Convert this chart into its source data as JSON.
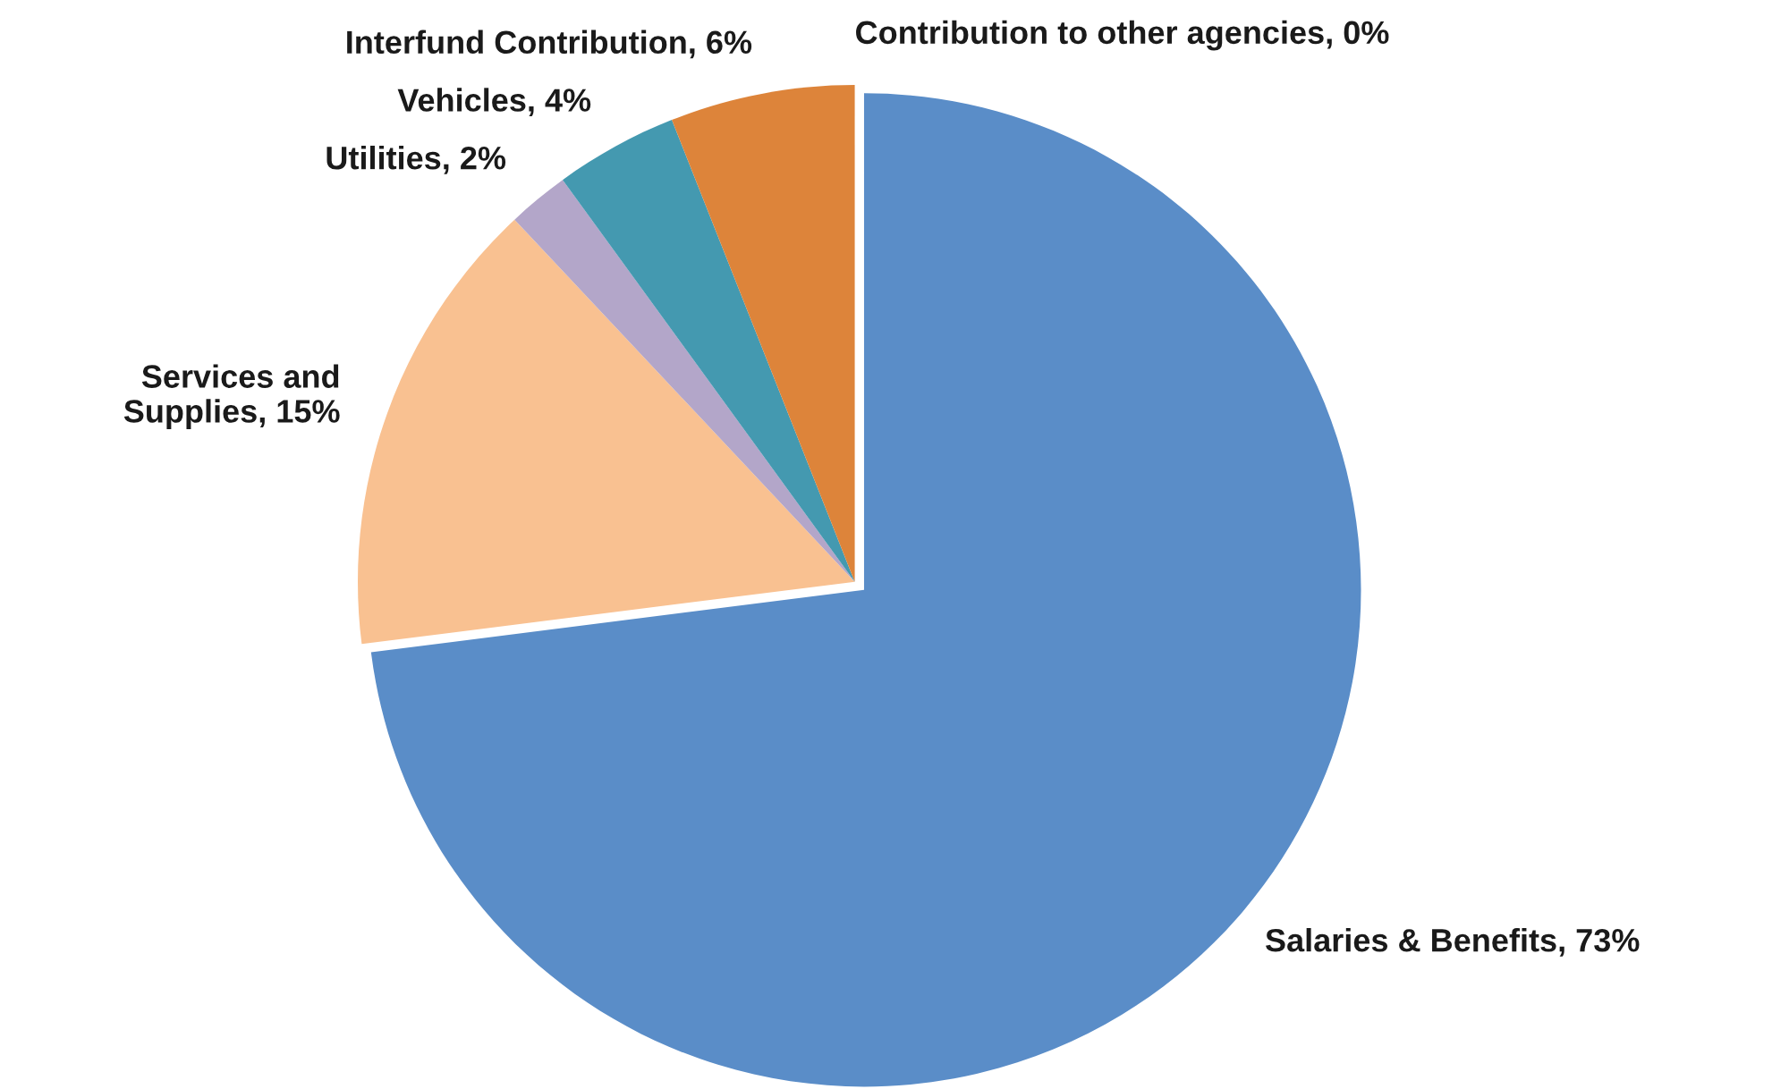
{
  "chart_data": {
    "type": "pie",
    "categories": [
      "Salaries & Benefits",
      "Services and Supplies",
      "Utilities",
      "Vehicles",
      "Interfund Contribution",
      "Contribution to other agencies"
    ],
    "values": [
      73,
      15,
      2,
      4,
      6,
      0
    ],
    "value_labels": [
      ", 73%",
      ", 15%",
      ", 2%",
      ", 4%",
      ", 6%",
      ", 0%"
    ],
    "colors": [
      "#5a8dc8",
      "#f9c191",
      "#b3a6c9",
      "#4499b0",
      "#dd843a",
      "#7f7f7f"
    ],
    "legend": false
  }
}
